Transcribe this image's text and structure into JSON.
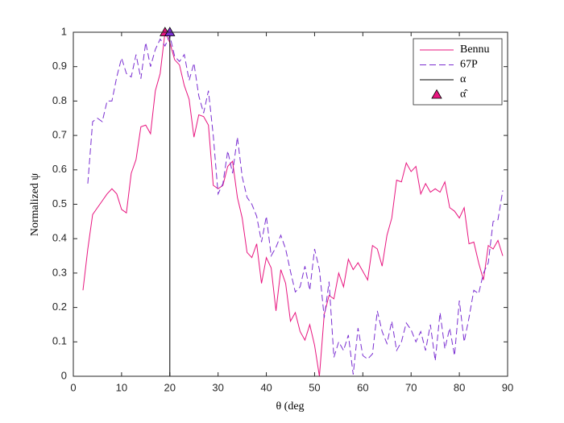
{
  "chart_data": {
    "type": "line",
    "xlabel": "θ (deg",
    "ylabel": "Normalized ψ",
    "xlim": [
      0,
      90
    ],
    "xticks": [
      0,
      10,
      20,
      30,
      40,
      50,
      60,
      70,
      80,
      90
    ],
    "ylim": [
      0,
      1
    ],
    "yticks": [
      0,
      0.1,
      0.2,
      0.3,
      0.4,
      0.5,
      0.6,
      0.7,
      0.8,
      0.9,
      1
    ],
    "grid": false,
    "legend": "top-right",
    "series": [
      {
        "name": "Bennu",
        "color": "#e8157f",
        "style": "solid",
        "x": [
          2,
          3,
          4,
          5,
          6,
          7,
          8,
          9,
          10,
          11,
          12,
          13,
          14,
          15,
          16,
          17,
          18,
          19,
          20,
          21,
          22,
          23,
          24,
          25,
          26,
          27,
          28,
          29,
          30,
          31,
          32,
          33,
          34,
          35,
          36,
          37,
          38,
          39,
          40,
          41,
          42,
          43,
          44,
          45,
          46,
          47,
          48,
          49,
          50,
          51,
          52,
          53,
          54,
          55,
          56,
          57,
          58,
          59,
          60,
          61,
          62,
          63,
          64,
          65,
          66,
          67,
          68,
          69,
          70,
          71,
          72,
          73,
          74,
          75,
          76,
          77,
          78,
          79,
          80,
          81,
          82,
          83,
          84,
          85,
          86,
          87,
          88,
          89
        ],
        "values": [
          0.25,
          0.37,
          0.47,
          0.49,
          0.51,
          0.53,
          0.545,
          0.53,
          0.485,
          0.475,
          0.59,
          0.63,
          0.725,
          0.73,
          0.705,
          0.83,
          0.88,
          1.0,
          0.97,
          0.92,
          0.905,
          0.845,
          0.805,
          0.695,
          0.76,
          0.755,
          0.73,
          0.555,
          0.545,
          0.555,
          0.61,
          0.625,
          0.52,
          0.46,
          0.36,
          0.345,
          0.385,
          0.27,
          0.345,
          0.315,
          0.19,
          0.31,
          0.27,
          0.16,
          0.185,
          0.13,
          0.105,
          0.15,
          0.09,
          0.0,
          0.18,
          0.235,
          0.225,
          0.3,
          0.26,
          0.34,
          0.31,
          0.33,
          0.305,
          0.28,
          0.38,
          0.37,
          0.32,
          0.41,
          0.46,
          0.57,
          0.565,
          0.62,
          0.595,
          0.61,
          0.53,
          0.56,
          0.535,
          0.545,
          0.535,
          0.565,
          0.49,
          0.48,
          0.46,
          0.49,
          0.385,
          0.39,
          0.33,
          0.28,
          0.38,
          0.37,
          0.395,
          0.35
        ]
      },
      {
        "name": "67P",
        "color": "#7a2ed1",
        "style": "dashed",
        "x": [
          3,
          4,
          5,
          6,
          7,
          8,
          9,
          10,
          11,
          12,
          13,
          14,
          15,
          16,
          17,
          18,
          19,
          20,
          21,
          22,
          23,
          24,
          25,
          26,
          27,
          28,
          29,
          30,
          31,
          32,
          33,
          34,
          35,
          36,
          37,
          38,
          39,
          40,
          41,
          42,
          43,
          44,
          45,
          46,
          47,
          48,
          49,
          50,
          51,
          52,
          53,
          54,
          55,
          56,
          57,
          58,
          59,
          60,
          61,
          62,
          63,
          64,
          65,
          66,
          67,
          68,
          69,
          70,
          71,
          72,
          73,
          74,
          75,
          76,
          77,
          78,
          79,
          80,
          81,
          82,
          83,
          84,
          85,
          86,
          87,
          88,
          89
        ],
        "values": [
          0.56,
          0.74,
          0.75,
          0.74,
          0.8,
          0.8,
          0.87,
          0.925,
          0.88,
          0.87,
          0.935,
          0.865,
          0.97,
          0.9,
          0.95,
          0.98,
          0.96,
          0.99,
          0.93,
          0.915,
          0.935,
          0.86,
          0.91,
          0.815,
          0.765,
          0.83,
          0.7,
          0.53,
          0.56,
          0.655,
          0.59,
          0.695,
          0.58,
          0.52,
          0.5,
          0.465,
          0.39,
          0.465,
          0.35,
          0.375,
          0.41,
          0.37,
          0.305,
          0.245,
          0.26,
          0.32,
          0.25,
          0.37,
          0.31,
          0.17,
          0.275,
          0.055,
          0.1,
          0.075,
          0.12,
          0.005,
          0.14,
          0.06,
          0.05,
          0.065,
          0.19,
          0.13,
          0.095,
          0.16,
          0.075,
          0.1,
          0.155,
          0.135,
          0.1,
          0.13,
          0.075,
          0.15,
          0.045,
          0.185,
          0.08,
          0.14,
          0.06,
          0.22,
          0.1,
          0.17,
          0.25,
          0.24,
          0.3,
          0.33,
          0.45,
          0.455,
          0.54
        ]
      },
      {
        "name": "α",
        "color": "#000000",
        "style": "vline",
        "x": [
          20
        ]
      },
      {
        "name": "α̂",
        "color": "#e8157f",
        "style": "marker",
        "x": [
          19,
          20
        ],
        "values": [
          1,
          1
        ],
        "colors": [
          "#e8157f",
          "#7a2ed1"
        ]
      }
    ]
  }
}
